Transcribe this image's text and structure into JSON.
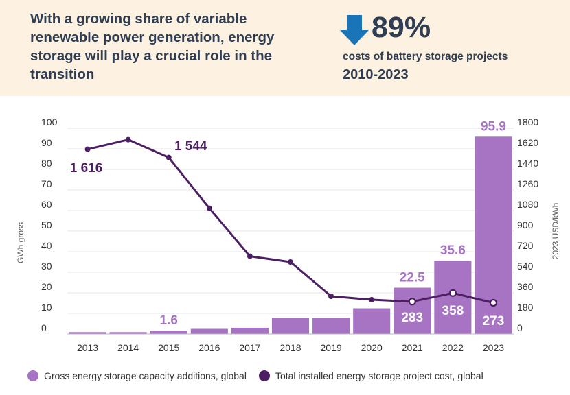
{
  "header": {
    "headline": "With a growing share of variable renewable power generation, energy storage will play a crucial role in the transition",
    "kpi_value": "89%",
    "kpi_description": "costs of battery storage projects",
    "kpi_period": "2010-2023",
    "arrow_icon": "down-arrow-icon"
  },
  "colors": {
    "banner_bg": "#fdf2e2",
    "text_dark": "#2f3e52",
    "bar": "#a674c2",
    "line": "#4b1f62",
    "arrow": "#1a74b8"
  },
  "chart_data": {
    "type": "bar+line",
    "categories": [
      "2013",
      "2014",
      "2015",
      "2016",
      "2017",
      "2018",
      "2019",
      "2020",
      "2021",
      "2022",
      "2023"
    ],
    "series": [
      {
        "name": "Gross energy storage capacity additions, global",
        "type": "bar",
        "axis": "left",
        "values": [
          0.9,
          0.9,
          1.6,
          2.5,
          3.0,
          7.8,
          7.8,
          12.5,
          22.5,
          35.6,
          95.9
        ],
        "labels": {
          "2015": "1.6",
          "2021": "22.5",
          "2022": "35.6",
          "2023": "95.9"
        }
      },
      {
        "name": "Total installed energy storage project cost, global",
        "type": "line",
        "axis": "right",
        "values": [
          1616,
          1700,
          1544,
          1100,
          680,
          630,
          330,
          300,
          283,
          358,
          273
        ],
        "labels": {
          "2013": "1 616",
          "2015": "1 544",
          "2021": "283",
          "2022": "358",
          "2023": "273"
        }
      }
    ],
    "left_axis": {
      "label": "GWh gross",
      "ylim": [
        0,
        100
      ],
      "ticks": [
        0,
        10,
        20,
        30,
        40,
        50,
        60,
        70,
        80,
        90,
        100
      ]
    },
    "right_axis": {
      "label": "2023 USD/kWh",
      "ylim": [
        0,
        1800
      ],
      "ticks": [
        0,
        180,
        360,
        540,
        720,
        900,
        1080,
        1260,
        1440,
        1620,
        1800
      ]
    },
    "legend_position": "bottom"
  }
}
